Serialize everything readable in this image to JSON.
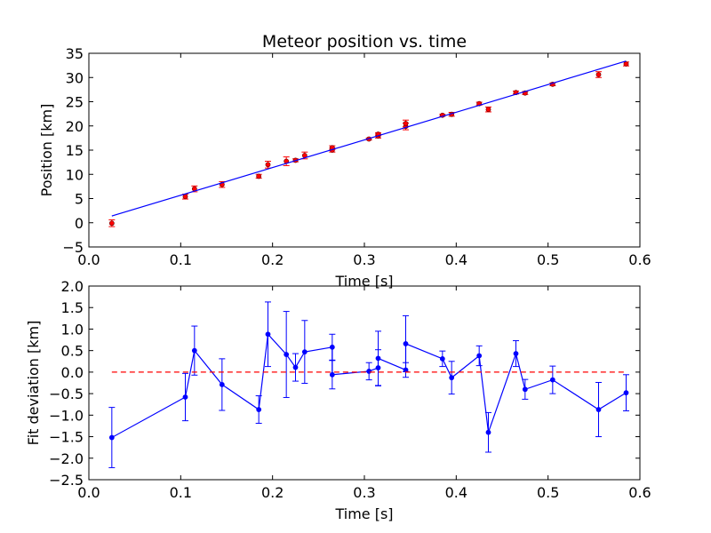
{
  "chart_data": [
    {
      "type": "scatter",
      "title": "Meteor position vs. time",
      "xlabel": "Time [s]",
      "ylabel": "Position [km]",
      "xlim": [
        0.0,
        0.6
      ],
      "ylim": [
        -5,
        35
      ],
      "xticks": [
        "0.0",
        "0.1",
        "0.2",
        "0.3",
        "0.4",
        "0.5",
        "0.6"
      ],
      "yticks": [
        "−5",
        "0",
        "5",
        "10",
        "15",
        "20",
        "25",
        "30",
        "35"
      ],
      "grid": false,
      "series": [
        {
          "kind": "errorbar",
          "color": "#ff0000",
          "x": [
            0.025,
            0.105,
            0.115,
            0.145,
            0.185,
            0.195,
            0.215,
            0.225,
            0.235,
            0.265,
            0.265,
            0.305,
            0.315,
            0.315,
            0.345,
            0.345,
            0.385,
            0.395,
            0.425,
            0.435,
            0.465,
            0.475,
            0.505,
            0.555,
            0.585
          ],
          "y": [
            -0.1,
            5.4,
            7.0,
            7.9,
            9.6,
            12.0,
            12.7,
            12.9,
            13.9,
            15.0,
            15.5,
            17.3,
            17.9,
            18.3,
            19.9,
            20.5,
            22.2,
            22.4,
            24.6,
            23.4,
            26.9,
            26.8,
            28.6,
            30.6,
            32.8
          ],
          "yerr": [
            0.7,
            0.5,
            0.6,
            0.6,
            0.4,
            0.7,
            0.9,
            0.3,
            0.7,
            0.4,
            0.4,
            0.2,
            0.4,
            0.3,
            0.7,
            0.7,
            0.2,
            0.4,
            0.3,
            0.5,
            0.3,
            0.3,
            0.3,
            0.6,
            0.4
          ]
        },
        {
          "kind": "line",
          "color": "#0000ff",
          "x": [
            0.025,
            0.585
          ],
          "y": [
            1.4,
            33.4
          ]
        }
      ]
    },
    {
      "type": "line",
      "title": "",
      "xlabel": "Time [s]",
      "ylabel": "Fit deviation [km]",
      "xlim": [
        0.0,
        0.6
      ],
      "ylim": [
        -2.5,
        2.0
      ],
      "xticks": [
        "0.0",
        "0.1",
        "0.2",
        "0.3",
        "0.4",
        "0.5",
        "0.6"
      ],
      "yticks": [
        "−2.5",
        "−2.0",
        "−1.5",
        "−1.0",
        "−0.5",
        "0.0",
        "0.5",
        "1.0",
        "1.5",
        "2.0"
      ],
      "grid": false,
      "series": [
        {
          "kind": "errorbar-line",
          "color": "#0000ff",
          "x": [
            0.025,
            0.105,
            0.115,
            0.145,
            0.185,
            0.195,
            0.215,
            0.225,
            0.235,
            0.265,
            0.265,
            0.305,
            0.315,
            0.315,
            0.345,
            0.345,
            0.385,
            0.395,
            0.425,
            0.435,
            0.465,
            0.475,
            0.505,
            0.555,
            0.585
          ],
          "y": [
            -1.52,
            -0.58,
            0.5,
            -0.29,
            -0.87,
            0.88,
            0.41,
            0.11,
            0.47,
            0.58,
            -0.06,
            0.02,
            0.1,
            0.32,
            0.05,
            0.66,
            0.31,
            -0.13,
            0.38,
            -1.4,
            0.43,
            -0.4,
            -0.18,
            -0.87,
            -0.48
          ],
          "yerr": [
            0.7,
            0.55,
            0.57,
            0.6,
            0.32,
            0.75,
            1.0,
            0.32,
            0.73,
            0.3,
            0.33,
            0.2,
            0.42,
            0.63,
            0.17,
            0.65,
            0.18,
            0.38,
            0.23,
            0.46,
            0.3,
            0.23,
            0.32,
            0.63,
            0.42
          ]
        },
        {
          "kind": "reference-line",
          "color": "#ff0000",
          "dash": true,
          "x": [
            0.025,
            0.585
          ],
          "y": [
            0.0,
            0.0
          ]
        }
      ]
    }
  ]
}
